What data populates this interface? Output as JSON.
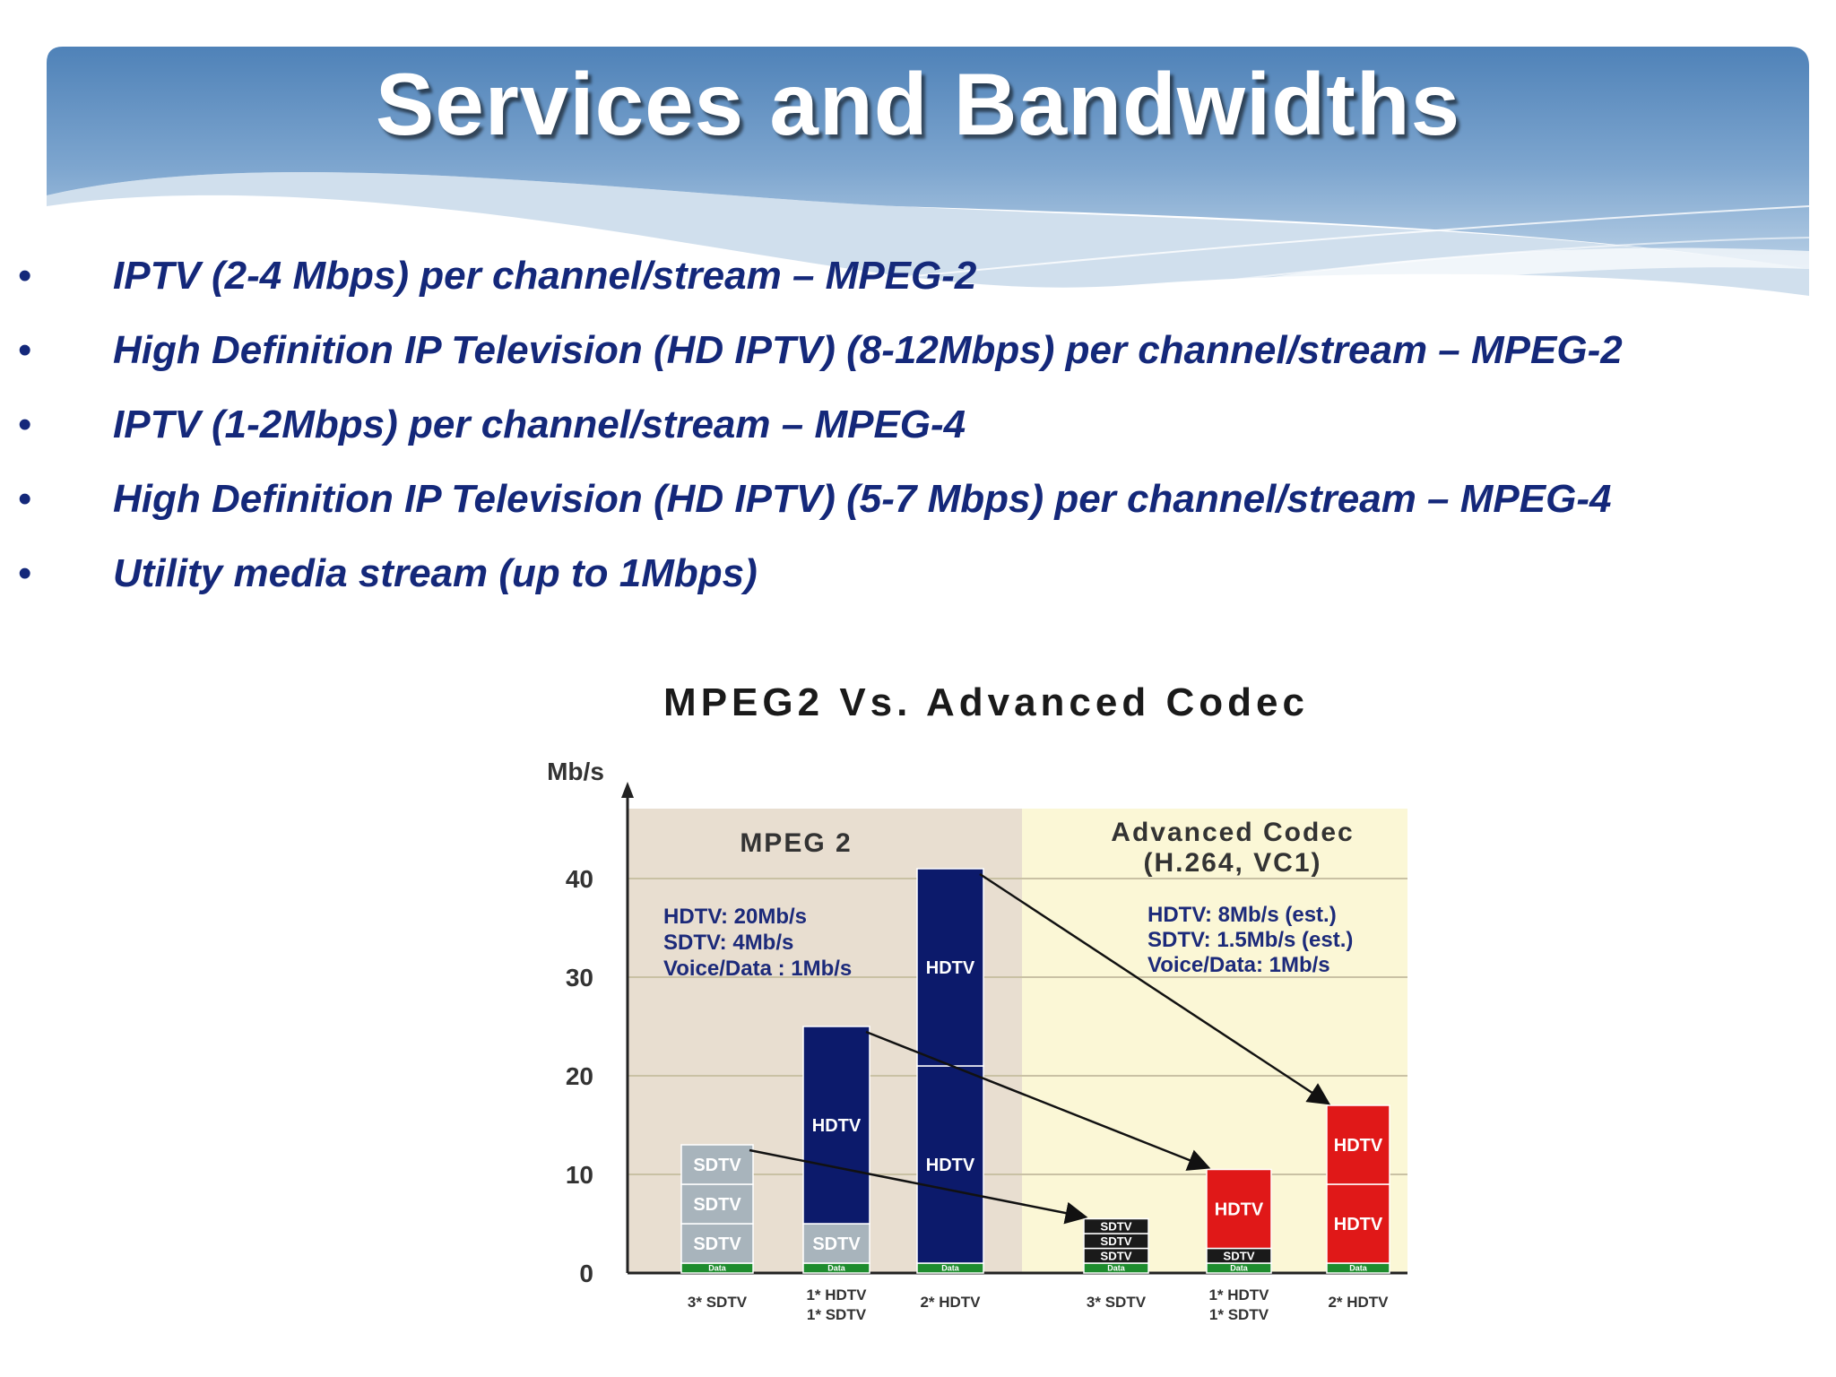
{
  "slide": {
    "title": "Services and Bandwidths",
    "bullets": [
      "IPTV (2-4 Mbps) per channel/stream – MPEG-2",
      "High Definition IP Television (HD IPTV) (8-12Mbps) per channel/stream – MPEG-2",
      "IPTV (1-2Mbps) per channel/stream – MPEG-4",
      "High Definition IP Television (HD IPTV) (5-7 Mbps) per channel/stream – MPEG-4",
      "Utility media stream (up to 1Mbps)"
    ],
    "bullet_glyph": "•"
  },
  "colors": {
    "title_text": "#ffffff",
    "bullet_text": "#14287a",
    "header_blue": "#5b8cc0",
    "mpeg2_bg": "#e8ded0",
    "advanced_bg": "#fbf7d6",
    "hdtv_mpeg2": "#0c1a6b",
    "hdtv_advanced": "#e01818",
    "sdtv_mpeg2": "#a8b4bc",
    "sdtv_advanced": "#1a1a1a",
    "data_green": "#1e8c2e"
  },
  "chart_data": {
    "type": "bar",
    "title": "MPEG2 Vs. Advanced Codec",
    "ylabel": "Mb/s",
    "ylim": [
      0,
      45
    ],
    "yticks": [
      "0",
      "10",
      "20",
      "30",
      "40"
    ],
    "yticks_values": [
      0,
      10,
      20,
      30,
      40
    ],
    "grid": true,
    "regions": [
      {
        "name": "MPEG 2",
        "notes": [
          "HDTV: 20Mb/s",
          "SDTV: 4Mb/s",
          "Voice/Data : 1Mb/s"
        ]
      },
      {
        "name": "Advanced Codec",
        "subname": "(H.264, VC1)",
        "notes": [
          "HDTV: 8Mb/s (est.)",
          "SDTV: 1.5Mb/s (est.)",
          "Voice/Data: 1Mb/s"
        ]
      }
    ],
    "categories": [
      [
        "3* SDTV"
      ],
      [
        "1* HDTV",
        "1* SDTV"
      ],
      [
        "2* HDTV"
      ],
      [
        "3* SDTV"
      ],
      [
        "1* HDTV",
        "1* SDTV"
      ],
      [
        "2* HDTV"
      ]
    ],
    "bars": [
      {
        "region": 0,
        "segments": [
          {
            "type": "Data",
            "value": 1
          },
          {
            "type": "SDTV",
            "value": 4
          },
          {
            "type": "SDTV",
            "value": 4
          },
          {
            "type": "SDTV",
            "value": 4
          }
        ]
      },
      {
        "region": 0,
        "segments": [
          {
            "type": "Data",
            "value": 1
          },
          {
            "type": "SDTV",
            "value": 4
          },
          {
            "type": "HDTV",
            "value": 20
          }
        ]
      },
      {
        "region": 0,
        "segments": [
          {
            "type": "Data",
            "value": 1
          },
          {
            "type": "HDTV",
            "value": 20
          },
          {
            "type": "HDTV",
            "value": 20
          }
        ]
      },
      {
        "region": 1,
        "segments": [
          {
            "type": "Data",
            "value": 1
          },
          {
            "type": "SDTV",
            "value": 1.5
          },
          {
            "type": "SDTV",
            "value": 1.5
          },
          {
            "type": "SDTV",
            "value": 1.5
          }
        ]
      },
      {
        "region": 1,
        "segments": [
          {
            "type": "Data",
            "value": 1
          },
          {
            "type": "SDTV",
            "value": 1.5
          },
          {
            "type": "HDTV",
            "value": 8
          }
        ]
      },
      {
        "region": 1,
        "segments": [
          {
            "type": "Data",
            "value": 1
          },
          {
            "type": "HDTV",
            "value": 8
          },
          {
            "type": "HDTV",
            "value": 8
          }
        ]
      }
    ],
    "segment_labels": {
      "HDTV": "HDTV",
      "SDTV": "SDTV",
      "Data": "Data"
    },
    "arrows": [
      [
        0,
        3
      ],
      [
        1,
        4
      ],
      [
        2,
        5
      ]
    ]
  }
}
